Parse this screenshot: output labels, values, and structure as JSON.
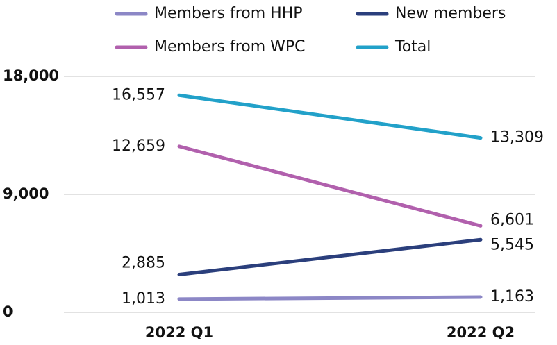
{
  "chart_data": {
    "type": "line",
    "categories": [
      "2022 Q1",
      "2022 Q2"
    ],
    "series": [
      {
        "name": "Members from HHP",
        "color": "#8c87c6",
        "values": [
          1013,
          1163
        ],
        "value_labels": [
          "1,013",
          "1,163"
        ]
      },
      {
        "name": "New members",
        "color": "#2b3f7c",
        "values": [
          2885,
          5545
        ],
        "value_labels": [
          "2,885",
          "5,545"
        ]
      },
      {
        "name": "Members from WPC",
        "color": "#b160ad",
        "values": [
          12659,
          6601
        ],
        "value_labels": [
          "12,659",
          "6,601"
        ]
      },
      {
        "name": "Total",
        "color": "#22a1c9",
        "values": [
          16557,
          13309
        ],
        "value_labels": [
          "16,557",
          "13,309"
        ]
      }
    ],
    "ylim": [
      0,
      18000
    ],
    "yticks": [
      0,
      {
        "value": 9000,
        "label": "9,000"
      },
      {
        "value": 18000,
        "label": "18,000"
      }
    ],
    "grid": true,
    "legend": "top"
  }
}
